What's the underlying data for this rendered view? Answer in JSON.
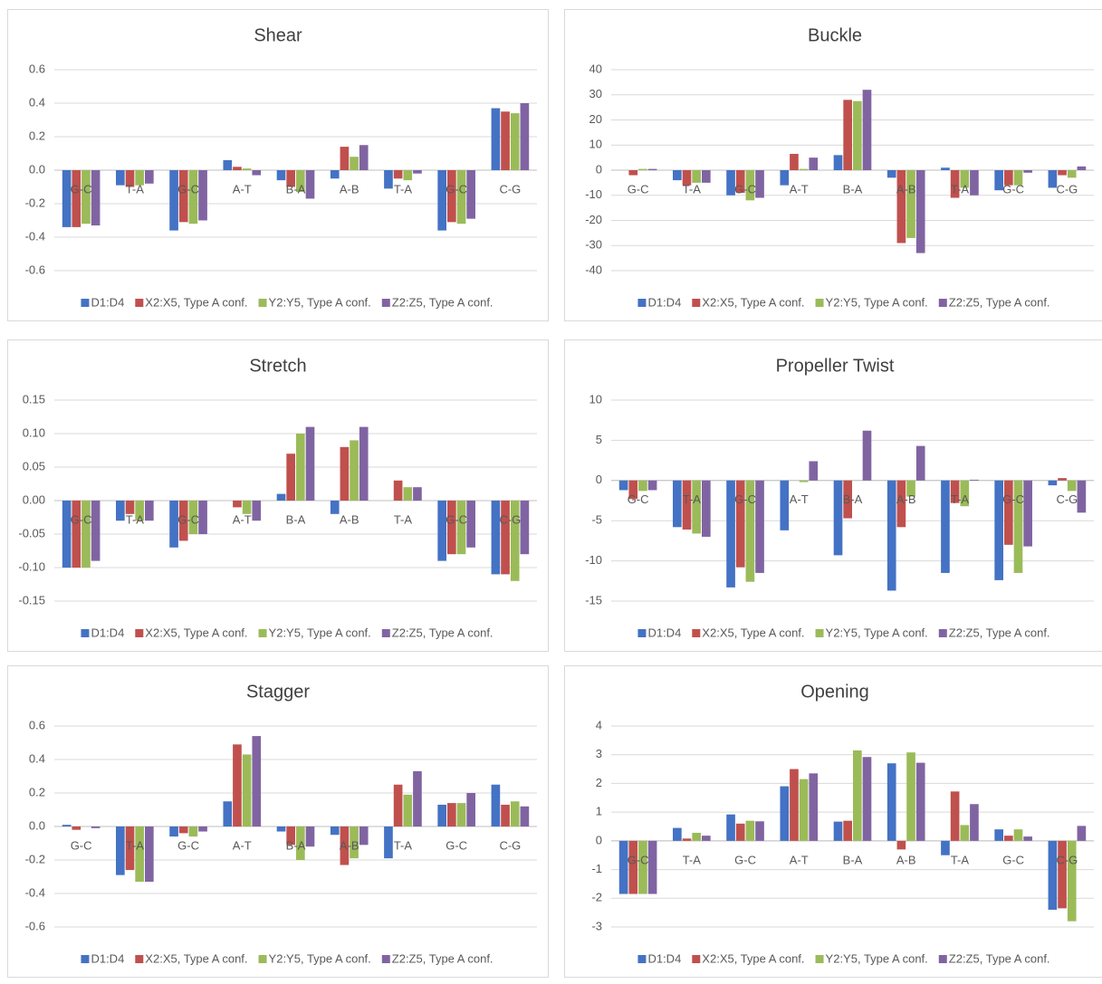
{
  "chart_data": [
    {
      "type": "bar",
      "title": "Shear",
      "categories": [
        "G-C",
        "T-A",
        "G-C",
        "A-T",
        "B-A",
        "A-B",
        "T-A",
        "G-C",
        "C-G"
      ],
      "series": [
        {
          "name": "D1:D4",
          "color": "#4472c4",
          "values": [
            -0.34,
            -0.09,
            -0.36,
            0.06,
            -0.06,
            -0.05,
            -0.11,
            -0.36,
            0.37
          ]
        },
        {
          "name": "X2:X5, Type A conf.",
          "color": "#c0504d",
          "values": [
            -0.34,
            -0.1,
            -0.31,
            0.02,
            -0.1,
            0.14,
            -0.05,
            -0.31,
            0.35
          ]
        },
        {
          "name": "Y2:Y5, Type A conf.",
          "color": "#9bbb59",
          "values": [
            -0.32,
            -0.09,
            -0.32,
            0.01,
            -0.13,
            0.08,
            -0.06,
            -0.32,
            0.34
          ]
        },
        {
          "name": "Z2:Z5, Type A conf.",
          "color": "#8064a2",
          "values": [
            -0.33,
            -0.08,
            -0.3,
            -0.03,
            -0.17,
            0.15,
            -0.02,
            -0.29,
            0.4
          ]
        }
      ],
      "ylim": [
        -0.6,
        0.6
      ],
      "yticks": [
        -0.6,
        -0.4,
        -0.2,
        {
          "value": 0,
          "label": "0.0"
        },
        0.2,
        0.4,
        0.6
      ],
      "grid": true,
      "legend": "bottom"
    },
    {
      "type": "bar",
      "title": "Buckle",
      "categories": [
        "G-C",
        "T-A",
        "G-C",
        "A-T",
        "B-A",
        "A-B",
        "T-A",
        "G-C",
        "C-G"
      ],
      "series": [
        {
          "name": "D1:D4",
          "color": "#4472c4",
          "values": [
            0,
            -4,
            -10,
            -6,
            6,
            -3,
            1,
            -8,
            -7
          ]
        },
        {
          "name": "X2:X5, Type A conf.",
          "color": "#c0504d",
          "values": [
            -2,
            -6,
            -9,
            6.5,
            28,
            -29,
            -11,
            -6,
            -2
          ]
        },
        {
          "name": "Y2:Y5, Type A conf.",
          "color": "#9bbb59",
          "values": [
            0.5,
            -5,
            -12,
            0.5,
            27.5,
            -27,
            -7,
            -6,
            -3
          ]
        },
        {
          "name": "Z2:Z5, Type A conf.",
          "color": "#8064a2",
          "values": [
            0.5,
            -5,
            -11,
            5,
            32,
            -33,
            -10,
            -1,
            1.5
          ]
        }
      ],
      "ylim": [
        -40,
        40
      ],
      "yticks": [
        -40,
        -30,
        -20,
        -10,
        0,
        10,
        20,
        30,
        40
      ],
      "grid": true,
      "legend": "bottom"
    },
    {
      "type": "bar",
      "title": "Stretch",
      "categories": [
        "G-C",
        "T-A",
        "G-C",
        "A-T",
        "B-A",
        "A-B",
        "T-A",
        "G-C",
        "C-G"
      ],
      "series": [
        {
          "name": "D1:D4",
          "color": "#4472c4",
          "values": [
            -0.1,
            -0.03,
            -0.07,
            0,
            0.01,
            -0.02,
            0,
            -0.09,
            -0.11
          ]
        },
        {
          "name": "X2:X5, Type A conf.",
          "color": "#c0504d",
          "values": [
            -0.1,
            -0.02,
            -0.06,
            -0.01,
            0.07,
            0.08,
            0.03,
            -0.08,
            -0.11
          ]
        },
        {
          "name": "Y2:Y5, Type A conf.",
          "color": "#9bbb59",
          "values": [
            -0.1,
            -0.03,
            -0.05,
            -0.02,
            0.1,
            0.09,
            0.02,
            -0.08,
            -0.12
          ]
        },
        {
          "name": "Z2:Z5, Type A conf.",
          "color": "#8064a2",
          "values": [
            -0.09,
            -0.03,
            -0.05,
            -0.03,
            0.11,
            0.11,
            0.02,
            -0.07,
            -0.08
          ]
        }
      ],
      "ylim": [
        -0.15,
        0.15
      ],
      "yticks": [
        -0.15,
        {
          "value": -0.1,
          "label": "-0.10"
        },
        -0.05,
        {
          "value": 0,
          "label": "0.00"
        },
        0.05,
        {
          "value": 0.1,
          "label": "0.10"
        },
        0.15
      ],
      "grid": true,
      "legend": "bottom"
    },
    {
      "type": "bar",
      "title": "Propeller Twist",
      "categories": [
        "G-C",
        "T-A",
        "G-C",
        "A-T",
        "B-A",
        "A-B",
        "T-A",
        "G-C",
        "C-G"
      ],
      "series": [
        {
          "name": "D1:D4",
          "color": "#4472c4",
          "values": [
            -1.2,
            -5.8,
            -13.3,
            -6.2,
            -9.3,
            -13.7,
            -11.5,
            -12.4,
            -0.6
          ]
        },
        {
          "name": "X2:X5, Type A conf.",
          "color": "#c0504d",
          "values": [
            -2.3,
            -6.1,
            -10.8,
            0,
            -4.7,
            -5.8,
            -2.8,
            -8,
            0.3
          ]
        },
        {
          "name": "Y2:Y5, Type A conf.",
          "color": "#9bbb59",
          "values": [
            -1.3,
            -6.6,
            -12.6,
            -0.2,
            0,
            -2,
            -3.2,
            -11.5,
            -1.3
          ]
        },
        {
          "name": "Z2:Z5, Type A conf.",
          "color": "#8064a2",
          "values": [
            -1.2,
            -7,
            -11.5,
            2.4,
            6.2,
            4.3,
            0.1,
            -8.2,
            -4
          ]
        }
      ],
      "ylim": [
        -15,
        10
      ],
      "yticks": [
        -15,
        -10,
        -5,
        0,
        5,
        10
      ],
      "grid": true,
      "legend": "bottom"
    },
    {
      "type": "bar",
      "title": "Stagger",
      "categories": [
        "G-C",
        "T-A",
        "G-C",
        "A-T",
        "B-A",
        "A-B",
        "T-A",
        "G-C",
        "C-G"
      ],
      "series": [
        {
          "name": "D1:D4",
          "color": "#4472c4",
          "values": [
            0.01,
            -0.29,
            -0.06,
            0.15,
            -0.03,
            -0.05,
            -0.19,
            0.13,
            0.25
          ]
        },
        {
          "name": "X2:X5, Type A conf.",
          "color": "#c0504d",
          "values": [
            -0.02,
            -0.26,
            -0.04,
            0.49,
            -0.11,
            -0.23,
            0.25,
            0.14,
            0.13
          ]
        },
        {
          "name": "Y2:Y5, Type A conf.",
          "color": "#9bbb59",
          "values": [
            0,
            -0.33,
            -0.06,
            0.43,
            -0.2,
            -0.19,
            0.19,
            0.14,
            0.15
          ]
        },
        {
          "name": "Z2:Z5, Type A conf.",
          "color": "#8064a2",
          "values": [
            -0.01,
            -0.33,
            -0.03,
            0.54,
            -0.12,
            -0.11,
            0.33,
            0.2,
            0.12
          ]
        }
      ],
      "ylim": [
        -0.6,
        0.6
      ],
      "yticks": [
        -0.6,
        -0.4,
        -0.2,
        {
          "value": 0,
          "label": "0.0"
        },
        0.2,
        0.4,
        0.6
      ],
      "grid": true,
      "legend": "bottom"
    },
    {
      "type": "bar",
      "title": "Opening",
      "categories": [
        "G-C",
        "T-A",
        "G-C",
        "A-T",
        "B-A",
        "A-B",
        "T-A",
        "G-C",
        "C-G"
      ],
      "series": [
        {
          "name": "D1:D4",
          "color": "#4472c4",
          "values": [
            -1.85,
            0.45,
            0.92,
            1.9,
            0.67,
            2.7,
            -0.5,
            0.4,
            -2.4
          ]
        },
        {
          "name": "X2:X5, Type A conf.",
          "color": "#c0504d",
          "values": [
            -1.85,
            0.08,
            0.6,
            2.5,
            0.7,
            -0.3,
            1.72,
            0.18,
            -2.35
          ]
        },
        {
          "name": "Y2:Y5, Type A conf.",
          "color": "#9bbb59",
          "values": [
            -1.85,
            0.28,
            0.7,
            2.15,
            3.15,
            3.08,
            0.55,
            0.4,
            -2.8
          ]
        },
        {
          "name": "Z2:Z5, Type A conf.",
          "color": "#8064a2",
          "values": [
            -1.85,
            0.18,
            0.68,
            2.35,
            2.92,
            2.72,
            1.28,
            0.15,
            0.52
          ]
        }
      ],
      "ylim": [
        -3,
        4
      ],
      "yticks": [
        -3,
        -2,
        -1,
        0,
        1,
        2,
        3,
        4
      ],
      "grid": true,
      "legend": "bottom"
    }
  ]
}
